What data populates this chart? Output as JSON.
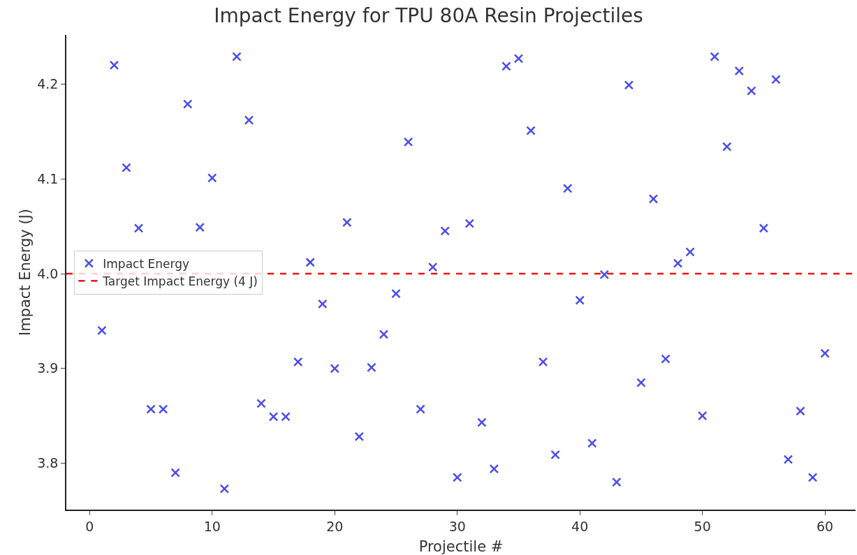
{
  "chart_data": {
    "type": "scatter",
    "title": "Impact Energy for TPU 80A Resin Projectiles",
    "xlabel": "Projectile #",
    "ylabel": "Impact Energy (J)",
    "x": [
      1,
      2,
      3,
      4,
      5,
      6,
      7,
      8,
      9,
      10,
      11,
      12,
      13,
      14,
      15,
      16,
      17,
      18,
      19,
      20,
      21,
      22,
      23,
      24,
      25,
      26,
      27,
      28,
      29,
      30,
      31,
      32,
      33,
      34,
      35,
      36,
      37,
      38,
      39,
      40,
      41,
      42,
      43,
      44,
      45,
      46,
      47,
      48,
      49,
      50,
      51,
      52,
      53,
      54,
      55,
      56,
      57,
      58,
      59,
      60
    ],
    "series": [
      {
        "name": "Impact Energy",
        "color": "#4b4bef",
        "values": [
          3.94,
          4.22,
          4.112,
          4.048,
          3.857,
          3.857,
          3.79,
          4.179,
          4.049,
          4.101,
          3.773,
          4.229,
          4.162,
          3.863,
          3.849,
          3.849,
          3.907,
          4.012,
          3.968,
          3.9,
          4.054,
          3.828,
          3.901,
          3.936,
          3.979,
          4.139,
          3.857,
          4.007,
          4.045,
          3.785,
          4.053,
          3.843,
          3.794,
          4.219,
          4.227,
          4.151,
          3.907,
          3.809,
          4.09,
          3.972,
          3.821,
          3.999,
          3.78,
          4.199,
          3.885,
          4.079,
          3.91,
          4.011,
          4.023,
          3.85,
          4.229,
          4.134,
          4.214,
          4.193,
          4.048,
          4.205,
          3.804,
          3.855,
          3.785,
          3.916
        ]
      }
    ],
    "ref_lines": [
      {
        "axis": "y",
        "value": 4.0,
        "label": "Target Impact Energy (4 J)",
        "color": "#ee1111",
        "line_style": "dashed"
      }
    ],
    "xlim": [
      -1.9,
      62.5
    ],
    "xticks": [
      0,
      10,
      20,
      30,
      40,
      50,
      60
    ],
    "ylim": [
      3.751,
      4.252
    ],
    "yticks": [
      3.8,
      3.9,
      {
        "value": 4,
        "label": "4.0"
      },
      4.1,
      4.2
    ],
    "marker": "cross",
    "grid": false,
    "legend": "left"
  }
}
